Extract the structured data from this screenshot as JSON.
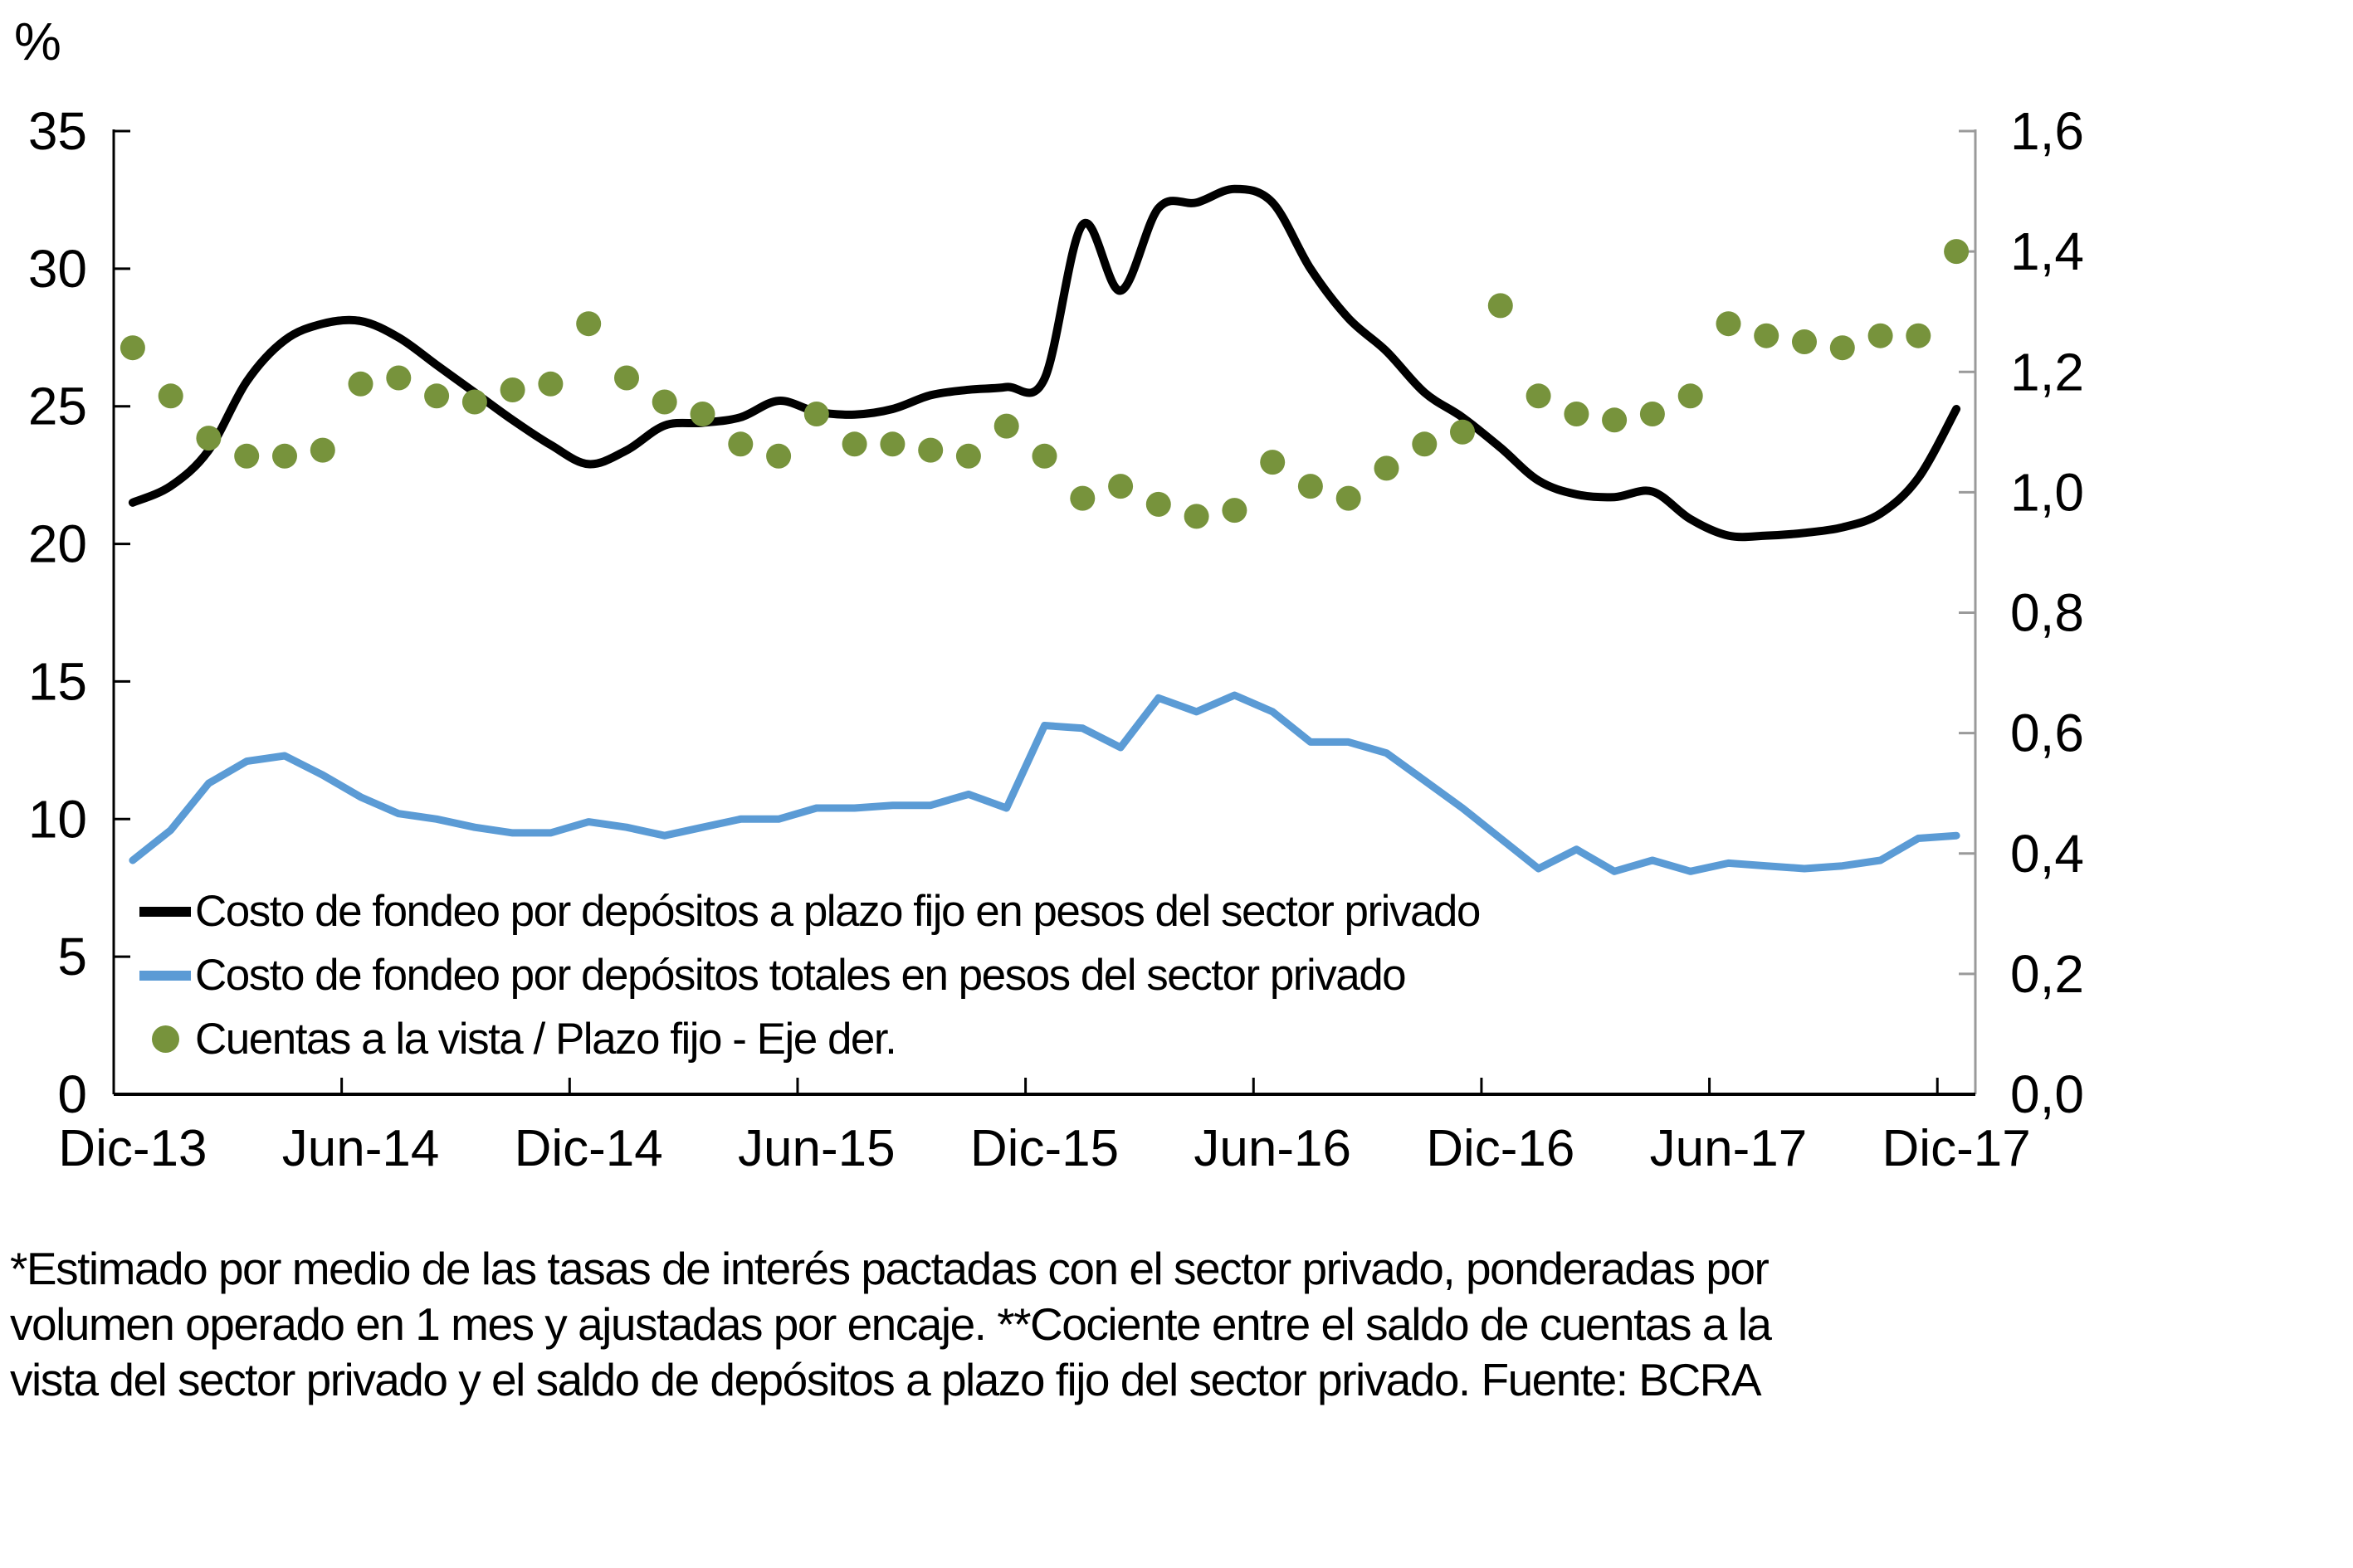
{
  "chart_data": {
    "type": "line",
    "title": "",
    "grid": false,
    "legend_position": "inside-bottom-left",
    "left_axis": {
      "unit_label": "%",
      "min": 0,
      "max": 35,
      "step": 5,
      "tick_labels": [
        "0",
        "5",
        "10",
        "15",
        "20",
        "25",
        "30",
        "35"
      ]
    },
    "right_axis": {
      "min": 0,
      "max": 1.6,
      "step": 0.2,
      "tick_labels": [
        "0,0",
        "0,2",
        "0,4",
        "0,6",
        "0,8",
        "1,0",
        "1,2",
        "1,4",
        "1,6"
      ]
    },
    "x": [
      "Dic-13",
      "Ene-14",
      "Feb-14",
      "Mar-14",
      "Abr-14",
      "May-14",
      "Jun-14",
      "Jul-14",
      "Ago-14",
      "Sep-14",
      "Oct-14",
      "Nov-14",
      "Dic-14",
      "Ene-15",
      "Feb-15",
      "Mar-15",
      "Abr-15",
      "May-15",
      "Jun-15",
      "Jul-15",
      "Ago-15",
      "Sep-15",
      "Oct-15",
      "Nov-15",
      "Dic-15",
      "Ene-16",
      "Feb-16",
      "Mar-16",
      "Abr-16",
      "May-16",
      "Jun-16",
      "Jul-16",
      "Ago-16",
      "Sep-16",
      "Oct-16",
      "Nov-16",
      "Dic-16",
      "Ene-17",
      "Feb-17",
      "Mar-17",
      "Abr-17",
      "May-17",
      "Jun-17",
      "Jul-17",
      "Ago-17",
      "Sep-17",
      "Oct-17",
      "Nov-17",
      "Dic-17"
    ],
    "x_tick_labels": [
      "Dic-13",
      "Jun-14",
      "Dic-14",
      "Jun-15",
      "Dic-15",
      "Jun-16",
      "Dic-16",
      "Jun-17",
      "Dic-17"
    ],
    "x_tick_every": 6,
    "series": [
      {
        "name": "Costo de fondeo por depósitos a plazo fijo en pesos del sector privado",
        "axis": "left",
        "style": "line-smooth",
        "color": "#000000",
        "stroke_width": 10,
        "values": [
          21.5,
          22.1,
          23.4,
          25.9,
          27.4,
          28.0,
          28.1,
          27.5,
          26.5,
          25.5,
          24.5,
          23.6,
          22.9,
          23.4,
          24.3,
          24.4,
          24.6,
          25.2,
          24.8,
          24.7,
          24.9,
          25.4,
          25.6,
          25.7,
          26.0,
          31.6,
          29.2,
          32.2,
          32.4,
          32.9,
          32.4,
          30.0,
          28.2,
          27.0,
          25.5,
          24.6,
          23.5,
          22.3,
          21.8,
          21.7,
          21.9,
          20.9,
          20.3,
          20.3,
          20.4,
          20.6,
          21.1,
          22.4,
          24.9
        ]
      },
      {
        "name": "Costo de fondeo por depósitos totales en pesos del sector privado",
        "axis": "left",
        "style": "line",
        "color": "#5B9BD5",
        "stroke_width": 9,
        "values": [
          8.5,
          9.6,
          11.3,
          12.1,
          12.3,
          11.6,
          10.8,
          10.2,
          10.0,
          9.7,
          9.5,
          9.5,
          9.9,
          9.7,
          9.4,
          9.7,
          10.0,
          10.0,
          10.4,
          10.4,
          10.5,
          10.5,
          10.9,
          10.4,
          13.4,
          13.3,
          12.6,
          14.4,
          13.9,
          14.5,
          13.9,
          12.8,
          12.8,
          12.4,
          11.4,
          10.4,
          9.3,
          8.2,
          8.9,
          8.1,
          8.5,
          8.1,
          8.4,
          8.3,
          8.2,
          8.3,
          8.5,
          9.3,
          9.4
        ]
      },
      {
        "name": "Cuentas a la vista / Plazo fijo - Eje der.",
        "axis": "right",
        "style": "dots",
        "color": "#77933C",
        "dot_radius": 15,
        "values": [
          1.24,
          1.16,
          1.09,
          1.06,
          1.06,
          1.07,
          1.18,
          1.19,
          1.16,
          1.15,
          1.17,
          1.18,
          1.28,
          1.19,
          1.15,
          1.13,
          1.08,
          1.06,
          1.13,
          1.08,
          1.08,
          1.07,
          1.06,
          1.11,
          1.06,
          0.99,
          1.01,
          0.98,
          0.96,
          0.97,
          1.05,
          1.01,
          0.99,
          1.04,
          1.08,
          1.1,
          1.31,
          1.16,
          1.13,
          1.12,
          1.13,
          1.16,
          1.28,
          1.26,
          1.25,
          1.24,
          1.26,
          1.26,
          1.4
        ]
      }
    ]
  },
  "legend": {
    "items": [
      {
        "label": "Costo de fondeo por depósitos a plazo fijo en pesos del sector privado"
      },
      {
        "label": "Costo de fondeo por depósitos totales en pesos del sector privado"
      },
      {
        "label": "Cuentas a la vista / Plazo fijo - Eje der."
      }
    ]
  },
  "footnote": {
    "lines": [
      "*Estimado por medio de las tasas de interés pactadas con el sector privado, ponderadas por",
      "volumen operado en 1 mes y ajustadas por encaje. **Cociente entre el saldo de cuentas a la",
      "vista del sector privado y el saldo de depósitos a plazo fijo del sector privado. Fuente: BCRA"
    ]
  },
  "colors": {
    "series_plazo_fijo": "#000000",
    "series_totales": "#5B9BD5",
    "series_cuentas_vista": "#77933C",
    "axis_left_bottom": "#000000",
    "axis_right": "#9A9A9A",
    "tick_label": "#000000"
  }
}
